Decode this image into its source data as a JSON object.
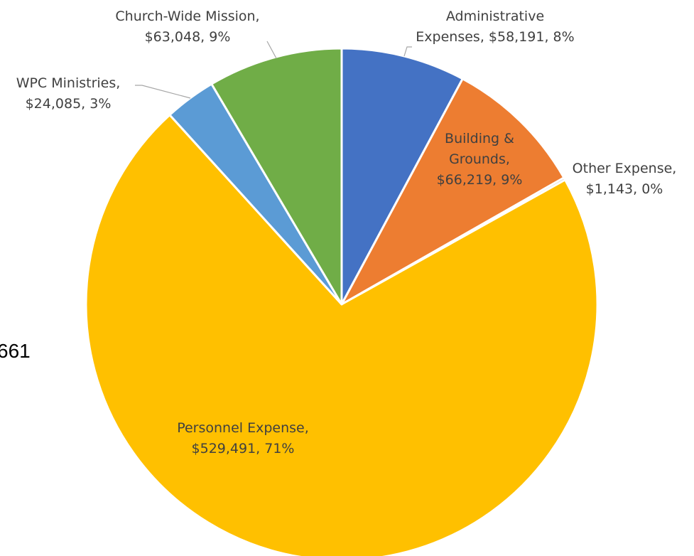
{
  "chart_data": {
    "type": "pie",
    "title": "",
    "start_angle_deg": 0,
    "direction": "clockwise",
    "slices": [
      {
        "name": "Administrative Expenses",
        "value": 58191,
        "percent": "8%",
        "color": "#4472C4",
        "label_lines": [
          "Administrative",
          "Expenses, $58,191, 8%"
        ]
      },
      {
        "name": "Building & Grounds",
        "value": 66219,
        "percent": "9%",
        "color": "#ED7D31",
        "label_lines": [
          "Building &",
          "Grounds,",
          "$66,219, 9%"
        ]
      },
      {
        "name": "Other Expense",
        "value": 1143,
        "percent": "0%",
        "color": "#A5A5A5",
        "label_lines": [
          "Other Expense,",
          "$1,143, 0%"
        ]
      },
      {
        "name": "Personnel Expense",
        "value": 529491,
        "percent": "71%",
        "color": "#FFC000",
        "label_lines": [
          "Personnel Expense,",
          "$529,491, 71%"
        ]
      },
      {
        "name": "WPC Ministries",
        "value": 24085,
        "percent": "3%",
        "color": "#5B9BD5",
        "label_lines": [
          "WPC Ministries,",
          "$24,085, 3%"
        ]
      },
      {
        "name": "Church-Wide Mission",
        "value": 63048,
        "percent": "9%",
        "color": "#70AD47",
        "label_lines": [
          "Church-Wide Mission,",
          "$63,048, 9%"
        ]
      }
    ]
  },
  "side_text": "661"
}
